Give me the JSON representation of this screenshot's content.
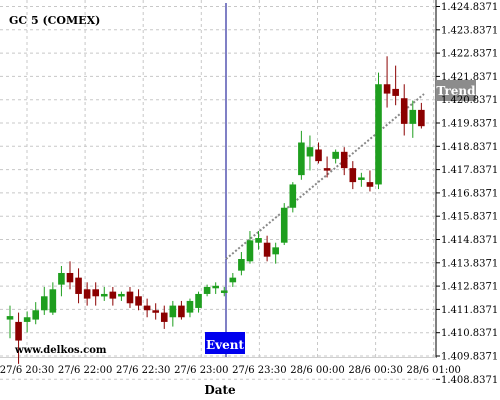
{
  "chart_data": {
    "type": "candlestick",
    "title": "GC 5 (COMEX)",
    "xlabel": "Date",
    "watermark": "www.delkos.com",
    "grid": true,
    "ylim": [
      1.4084,
      1.4253
    ],
    "y_ticks": [
      "1.424.8371",
      "1.423.8371",
      "1.422.8371",
      "1.421.8371",
      "1.420.8371",
      "1.419.8371",
      "1.418.8371",
      "1.417.8371",
      "1.416.8371",
      "1.415.8371",
      "1.414.8371",
      "1.413.8371",
      "1.412.8371",
      "1.411.8371",
      "1.410.8371",
      "1.409.8371",
      "1.408.8371"
    ],
    "x_ticks": [
      "27/6 20:30",
      "27/6 22:00",
      "27/6 22:30",
      "27/6 23:00",
      "27/6 23:30",
      "28/6 00:00",
      "28/6 00:30",
      "28/6 01:00"
    ],
    "colors": {
      "up": "#1e9e1e",
      "down": "#8b0000",
      "grid": "#c8c8c8",
      "event_line": "#00008b",
      "event_box": "#0000ee",
      "trend_line": "#888888",
      "trend_tag": "#8c8c8c"
    },
    "event": {
      "label": "Event",
      "candle_index": 24
    },
    "trend": {
      "label": "Trend",
      "start_index": 24,
      "end_index": 45
    },
    "candles": [
      {
        "o": 1.4114,
        "h": 1.412,
        "l": 1.4106,
        "c": 1.41155
      },
      {
        "o": 1.4113,
        "h": 1.4117,
        "l": 1.4095,
        "c": 1.4105
      },
      {
        "o": 1.4113,
        "h": 1.41175,
        "l": 1.41085,
        "c": 1.4115
      },
      {
        "o": 1.4114,
        "h": 1.41215,
        "l": 1.4112,
        "c": 1.4118
      },
      {
        "o": 1.4118,
        "h": 1.4128,
        "l": 1.4116,
        "c": 1.4124
      },
      {
        "o": 1.4117,
        "h": 1.413,
        "l": 1.4116,
        "c": 1.4127
      },
      {
        "o": 1.4129,
        "h": 1.4137,
        "l": 1.4124,
        "c": 1.4134
      },
      {
        "o": 1.4134,
        "h": 1.4139,
        "l": 1.4127,
        "c": 1.413
      },
      {
        "o": 1.4132,
        "h": 1.4136,
        "l": 1.4121,
        "c": 1.4125
      },
      {
        "o": 1.4127,
        "h": 1.413,
        "l": 1.412,
        "c": 1.4123
      },
      {
        "o": 1.4127,
        "h": 1.413,
        "l": 1.412,
        "c": 1.4124
      },
      {
        "o": 1.4124,
        "h": 1.4128,
        "l": 1.4122,
        "c": 1.4125
      },
      {
        "o": 1.4126,
        "h": 1.4128,
        "l": 1.412,
        "c": 1.4123
      },
      {
        "o": 1.4124,
        "h": 1.4126,
        "l": 1.4122,
        "c": 1.4125
      },
      {
        "o": 1.4126,
        "h": 1.4128,
        "l": 1.4119,
        "c": 1.4121
      },
      {
        "o": 1.4124,
        "h": 1.4127,
        "l": 1.4118,
        "c": 1.412
      },
      {
        "o": 1.412,
        "h": 1.4123,
        "l": 1.4115,
        "c": 1.4118
      },
      {
        "o": 1.4118,
        "h": 1.4121,
        "l": 1.4114,
        "c": 1.4117
      },
      {
        "o": 1.4117,
        "h": 1.412,
        "l": 1.411,
        "c": 1.4113
      },
      {
        "o": 1.4115,
        "h": 1.4122,
        "l": 1.4111,
        "c": 1.412
      },
      {
        "o": 1.412,
        "h": 1.4122,
        "l": 1.4114,
        "c": 1.4115
      },
      {
        "o": 1.4117,
        "h": 1.4123,
        "l": 1.4115,
        "c": 1.4122
      },
      {
        "o": 1.4119,
        "h": 1.4126,
        "l": 1.4117,
        "c": 1.4125
      },
      {
        "o": 1.4125,
        "h": 1.4129,
        "l": 1.4124,
        "c": 1.4128
      },
      {
        "o": 1.41275,
        "h": 1.413,
        "l": 1.4125,
        "c": 1.41285
      },
      {
        "o": 1.4126,
        "h": 1.4128,
        "l": 1.4124,
        "c": 1.41265
      },
      {
        "o": 1.413,
        "h": 1.4134,
        "l": 1.4128,
        "c": 1.4132
      },
      {
        "o": 1.4135,
        "h": 1.4143,
        "l": 1.4133,
        "c": 1.414
      },
      {
        "o": 1.4139,
        "h": 1.4152,
        "l": 1.4138,
        "c": 1.4148
      },
      {
        "o": 1.4147,
        "h": 1.4152,
        "l": 1.4144,
        "c": 1.4149
      },
      {
        "o": 1.4147,
        "h": 1.415,
        "l": 1.4139,
        "c": 1.4141
      },
      {
        "o": 1.4142,
        "h": 1.4147,
        "l": 1.4138,
        "c": 1.4145
      },
      {
        "o": 1.4147,
        "h": 1.4164,
        "l": 1.4146,
        "c": 1.4162
      },
      {
        "o": 1.4162,
        "h": 1.4173,
        "l": 1.416,
        "c": 1.4172
      },
      {
        "o": 1.4176,
        "h": 1.4195,
        "l": 1.4174,
        "c": 1.419
      },
      {
        "o": 1.4184,
        "h": 1.4193,
        "l": 1.4178,
        "c": 1.4188
      },
      {
        "o": 1.4187,
        "h": 1.419,
        "l": 1.4181,
        "c": 1.4182
      },
      {
        "o": 1.4179,
        "h": 1.4184,
        "l": 1.4175,
        "c": 1.4178
      },
      {
        "o": 1.4183,
        "h": 1.4187,
        "l": 1.4181,
        "c": 1.4186
      },
      {
        "o": 1.4186,
        "h": 1.4188,
        "l": 1.4176,
        "c": 1.4179
      },
      {
        "o": 1.4179,
        "h": 1.4182,
        "l": 1.417,
        "c": 1.4173
      },
      {
        "o": 1.4174,
        "h": 1.4177,
        "l": 1.4171,
        "c": 1.4175
      },
      {
        "o": 1.4173,
        "h": 1.4178,
        "l": 1.4169,
        "c": 1.4171
      },
      {
        "o": 1.4172,
        "h": 1.422,
        "l": 1.417,
        "c": 1.4215
      },
      {
        "o": 1.4215,
        "h": 1.4227,
        "l": 1.4205,
        "c": 1.4211
      },
      {
        "o": 1.4213,
        "h": 1.4223,
        "l": 1.4206,
        "c": 1.421
      },
      {
        "o": 1.4209,
        "h": 1.4215,
        "l": 1.4193,
        "c": 1.4198
      },
      {
        "o": 1.4198,
        "h": 1.4208,
        "l": 1.4192,
        "c": 1.4204
      },
      {
        "o": 1.4204,
        "h": 1.4207,
        "l": 1.4196,
        "c": 1.4197
      }
    ]
  }
}
